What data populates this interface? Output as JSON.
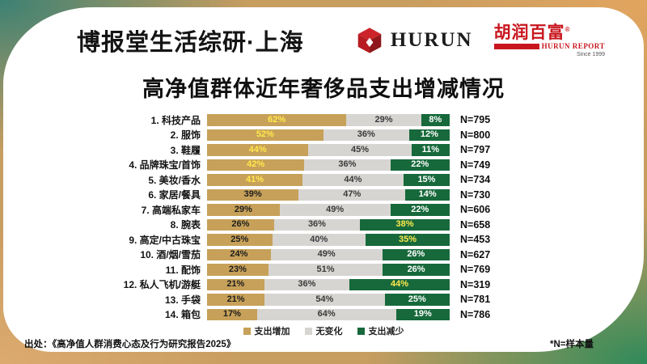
{
  "header": {
    "brand": "博报堂生活综研·上海",
    "hurun_wordmark": "HURUN",
    "hurun_report": {
      "cn": "胡润百富",
      "reg_mark": "®",
      "en": "HURUN REPORT",
      "since": "Since 1999"
    }
  },
  "title": "高净值群体近年奢侈品支出增减情况",
  "chart_data": {
    "type": "bar",
    "variant": "horizontal-stacked-percent",
    "title": "高净值群体近年奢侈品支出增减情况",
    "categories": [
      "1. 科技产品",
      "2. 服饰",
      "3. 鞋履",
      "4. 品牌珠宝/首饰",
      "5. 美妆/香水",
      "6. 家居/餐具",
      "7. 高端私家车",
      "8. 腕表",
      "9. 高定/中古珠宝",
      "10. 酒/烟/雪茄",
      "11. 配饰",
      "12. 私人飞机/游艇",
      "13. 手袋",
      "14. 箱包"
    ],
    "series": [
      {
        "key": "increase",
        "name": "支出增加",
        "color": "#C7A159",
        "label_color": "#1d1d1d",
        "values": [
          62,
          52,
          44,
          42,
          41,
          39,
          29,
          26,
          25,
          24,
          23,
          21,
          21,
          17
        ]
      },
      {
        "key": "no-change",
        "name": "无变化",
        "color": "#D7D5D2",
        "label_color": "#3a3a3a",
        "values": [
          29,
          36,
          45,
          36,
          44,
          47,
          49,
          36,
          40,
          49,
          51,
          36,
          54,
          64
        ]
      },
      {
        "key": "decrease",
        "name": "支出减少",
        "color": "#17693B",
        "label_color": "#ffffff",
        "values": [
          8,
          12,
          11,
          22,
          15,
          14,
          22,
          38,
          35,
          26,
          26,
          44,
          25,
          19
        ]
      }
    ],
    "unit": "%",
    "sample_size_prefix": "N=",
    "sample_sizes": [
      795,
      800,
      797,
      749,
      734,
      730,
      606,
      658,
      453,
      627,
      769,
      319,
      781,
      786
    ],
    "highlighted_values": {
      "支出增加": [
        0,
        1,
        2,
        3,
        4
      ],
      "支出减少": [
        7,
        8,
        11
      ]
    },
    "highlight_text_color": "#FFE94D",
    "legend_position": "bottom",
    "xlim": [
      0,
      100
    ],
    "grid": false
  },
  "footer": {
    "source": "出处：《高净值人群消费心态及行为研究报告2025》",
    "note": "*N=样本量"
  }
}
